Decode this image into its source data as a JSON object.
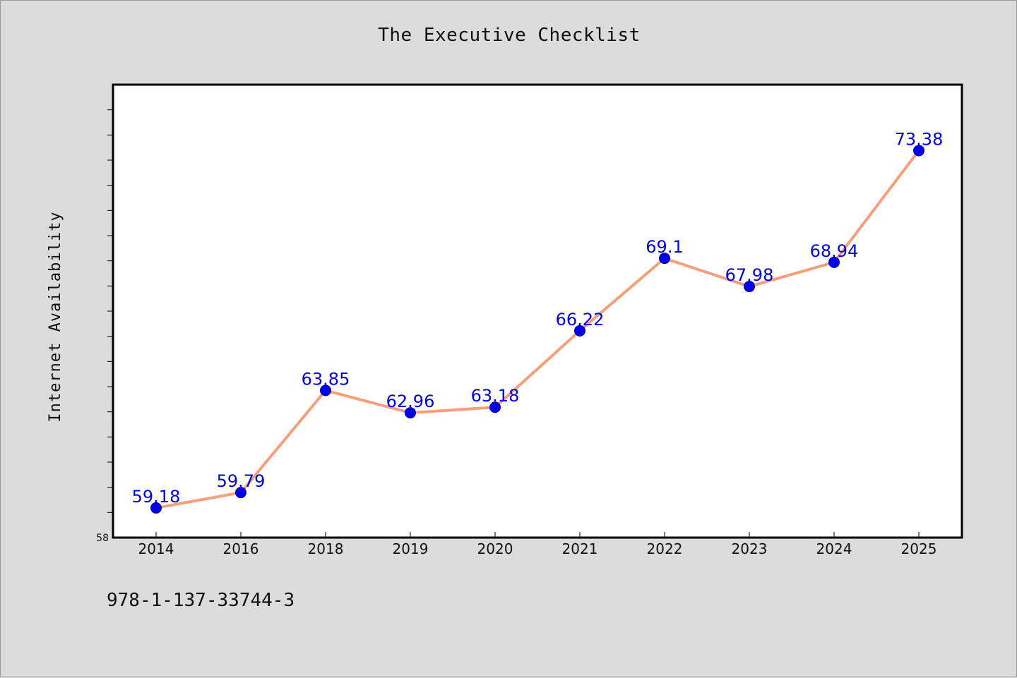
{
  "chart_data": {
    "type": "line",
    "title": "The Executive Checklist",
    "ylabel": "Internet Availability",
    "xlabel": "",
    "categories": [
      "2014",
      "2016",
      "2018",
      "2019",
      "2020",
      "2021",
      "2022",
      "2023",
      "2024",
      "2025"
    ],
    "series": [
      {
        "values": [
          59.18,
          59.79,
          63.85,
          62.96,
          63.18,
          66.22,
          69.1,
          67.98,
          68.94,
          73.38
        ],
        "data_labels": [
          "59.18",
          "59.79",
          "63.85",
          "62.96",
          "63.18",
          "66.22",
          "69.1",
          "67.98",
          "68.94",
          "73.38"
        ]
      }
    ],
    "ylim": [
      58,
      76
    ],
    "yticks_labeled": [
      "58"
    ],
    "grid": false,
    "legend": "none",
    "colors": {
      "line": "#f4a07a",
      "marker": "#0000ee",
      "data_label": "#0000ee",
      "plot_background": "#ffffff",
      "page_background": "#dcdcdc"
    }
  },
  "footer": {
    "isbn": "978-1-137-33744-3"
  }
}
